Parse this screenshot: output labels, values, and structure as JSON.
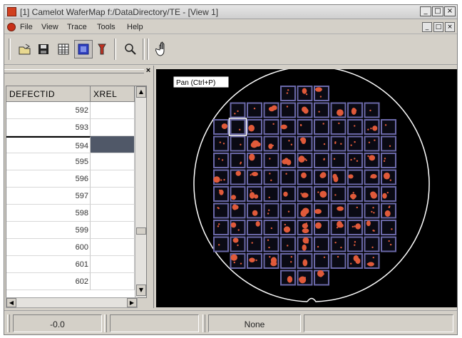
{
  "window": {
    "title": "[1] Camelot WaferMap f:/DataDirectory/TE - [View 1]",
    "controls": [
      "_",
      "□",
      "×"
    ],
    "mdi_controls": [
      "_",
      "□",
      "×"
    ]
  },
  "menu": {
    "items": [
      "File",
      "View",
      "Trace",
      "Tools",
      "Help"
    ]
  },
  "toolbar": {
    "icons": [
      "open-icon",
      "save-icon",
      "grid-view-icon",
      "wafer-view-icon",
      "probe-icon",
      "zoom-icon",
      "pan-hand-icon"
    ],
    "pressed": "wafer-view-icon"
  },
  "table": {
    "columns": [
      "DEFECTID",
      "XREL"
    ],
    "rows": [
      "592",
      "593",
      "594",
      "595",
      "596",
      "597",
      "598",
      "599",
      "600",
      "601",
      "602"
    ],
    "selected_row": "594"
  },
  "map": {
    "tooltip": "Pan (Ctrl+P)",
    "colors": {
      "die_border": "#6a68a8",
      "defect": "#e05a3a",
      "background": "#000000",
      "outline": "#ffffff"
    }
  },
  "status": {
    "coord": "-0.0",
    "mode": "None"
  }
}
